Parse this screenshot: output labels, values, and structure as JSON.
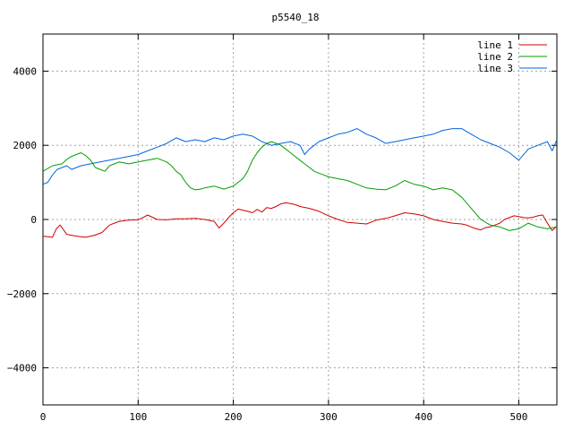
{
  "chart_data": {
    "type": "line",
    "title": "p5540_18",
    "xlabel": "",
    "ylabel": "",
    "xlim": [
      0,
      540
    ],
    "ylim": [
      -5000,
      5000
    ],
    "x_ticks": [
      0,
      100,
      200,
      300,
      400,
      500
    ],
    "y_ticks": [
      -4000,
      -2000,
      0,
      2000,
      4000
    ],
    "grid": true,
    "legend_position": "top-right",
    "series": [
      {
        "name": "line 1",
        "color": "#d00000",
        "x": [
          0,
          10,
          14,
          18,
          25,
          35,
          45,
          55,
          62,
          70,
          80,
          90,
          100,
          105,
          110,
          115,
          120,
          130,
          140,
          150,
          160,
          170,
          180,
          185,
          190,
          195,
          200,
          205,
          210,
          215,
          220,
          225,
          230,
          235,
          240,
          245,
          250,
          255,
          260,
          265,
          270,
          280,
          290,
          300,
          310,
          320,
          330,
          340,
          350,
          360,
          370,
          380,
          390,
          400,
          410,
          420,
          430,
          440,
          445,
          450,
          455,
          460,
          465,
          470,
          475,
          480,
          485,
          490,
          495,
          500,
          505,
          510,
          515,
          520,
          525,
          530,
          535,
          540
        ],
        "values": [
          -450,
          -480,
          -250,
          -150,
          -400,
          -450,
          -480,
          -420,
          -350,
          -150,
          -50,
          -20,
          -10,
          50,
          120,
          60,
          0,
          -10,
          20,
          20,
          30,
          0,
          -50,
          -230,
          -100,
          50,
          180,
          280,
          250,
          220,
          180,
          270,
          200,
          320,
          300,
          350,
          420,
          450,
          430,
          400,
          350,
          300,
          220,
          100,
          0,
          -80,
          -100,
          -120,
          -20,
          30,
          100,
          180,
          150,
          100,
          0,
          -50,
          -100,
          -120,
          -150,
          -200,
          -250,
          -280,
          -220,
          -200,
          -150,
          -100,
          0,
          50,
          100,
          80,
          50,
          40,
          60,
          100,
          120,
          -100,
          -300,
          -180
        ]
      },
      {
        "name": "line 2",
        "color": "#00a000",
        "x": [
          0,
          10,
          20,
          25,
          30,
          35,
          40,
          45,
          50,
          55,
          60,
          65,
          70,
          80,
          90,
          100,
          110,
          120,
          130,
          135,
          140,
          145,
          150,
          155,
          160,
          165,
          170,
          180,
          190,
          200,
          205,
          210,
          215,
          220,
          225,
          230,
          235,
          240,
          245,
          250,
          255,
          260,
          265,
          270,
          275,
          280,
          285,
          290,
          295,
          300,
          310,
          320,
          330,
          340,
          350,
          360,
          370,
          380,
          390,
          400,
          410,
          420,
          430,
          440,
          450,
          460,
          470,
          480,
          490,
          500,
          510,
          520,
          530,
          540
        ],
        "values": [
          1300,
          1450,
          1500,
          1620,
          1700,
          1750,
          1800,
          1720,
          1600,
          1400,
          1350,
          1300,
          1450,
          1550,
          1500,
          1550,
          1600,
          1650,
          1550,
          1450,
          1300,
          1200,
          1000,
          850,
          800,
          820,
          850,
          900,
          820,
          900,
          1000,
          1100,
          1300,
          1600,
          1800,
          1950,
          2050,
          2100,
          2050,
          2000,
          1900,
          1800,
          1700,
          1600,
          1500,
          1400,
          1300,
          1250,
          1200,
          1150,
          1100,
          1050,
          950,
          850,
          820,
          800,
          900,
          1050,
          950,
          900,
          800,
          850,
          800,
          600,
          300,
          0,
          -150,
          -200,
          -300,
          -250,
          -100,
          -200,
          -250,
          -200
        ]
      },
      {
        "name": "line 3",
        "color": "#0066dd",
        "x": [
          0,
          5,
          10,
          15,
          20,
          25,
          30,
          40,
          50,
          60,
          70,
          80,
          90,
          100,
          110,
          120,
          130,
          140,
          150,
          160,
          170,
          180,
          190,
          200,
          210,
          220,
          230,
          240,
          250,
          260,
          270,
          275,
          280,
          290,
          300,
          310,
          320,
          330,
          340,
          350,
          360,
          370,
          380,
          390,
          400,
          410,
          420,
          430,
          440,
          450,
          460,
          470,
          480,
          490,
          500,
          510,
          520,
          530,
          535,
          540
        ],
        "values": [
          950,
          1000,
          1200,
          1350,
          1400,
          1450,
          1350,
          1450,
          1500,
          1550,
          1600,
          1650,
          1700,
          1750,
          1850,
          1950,
          2050,
          2200,
          2100,
          2150,
          2100,
          2200,
          2150,
          2250,
          2300,
          2250,
          2100,
          2000,
          2050,
          2100,
          2000,
          1750,
          1900,
          2100,
          2200,
          2300,
          2350,
          2450,
          2300,
          2200,
          2050,
          2100,
          2150,
          2200,
          2250,
          2300,
          2400,
          2450,
          2450,
          2300,
          2150,
          2050,
          1950,
          1800,
          1600,
          1900,
          2000,
          2100,
          1850,
          2150
        ]
      }
    ]
  }
}
